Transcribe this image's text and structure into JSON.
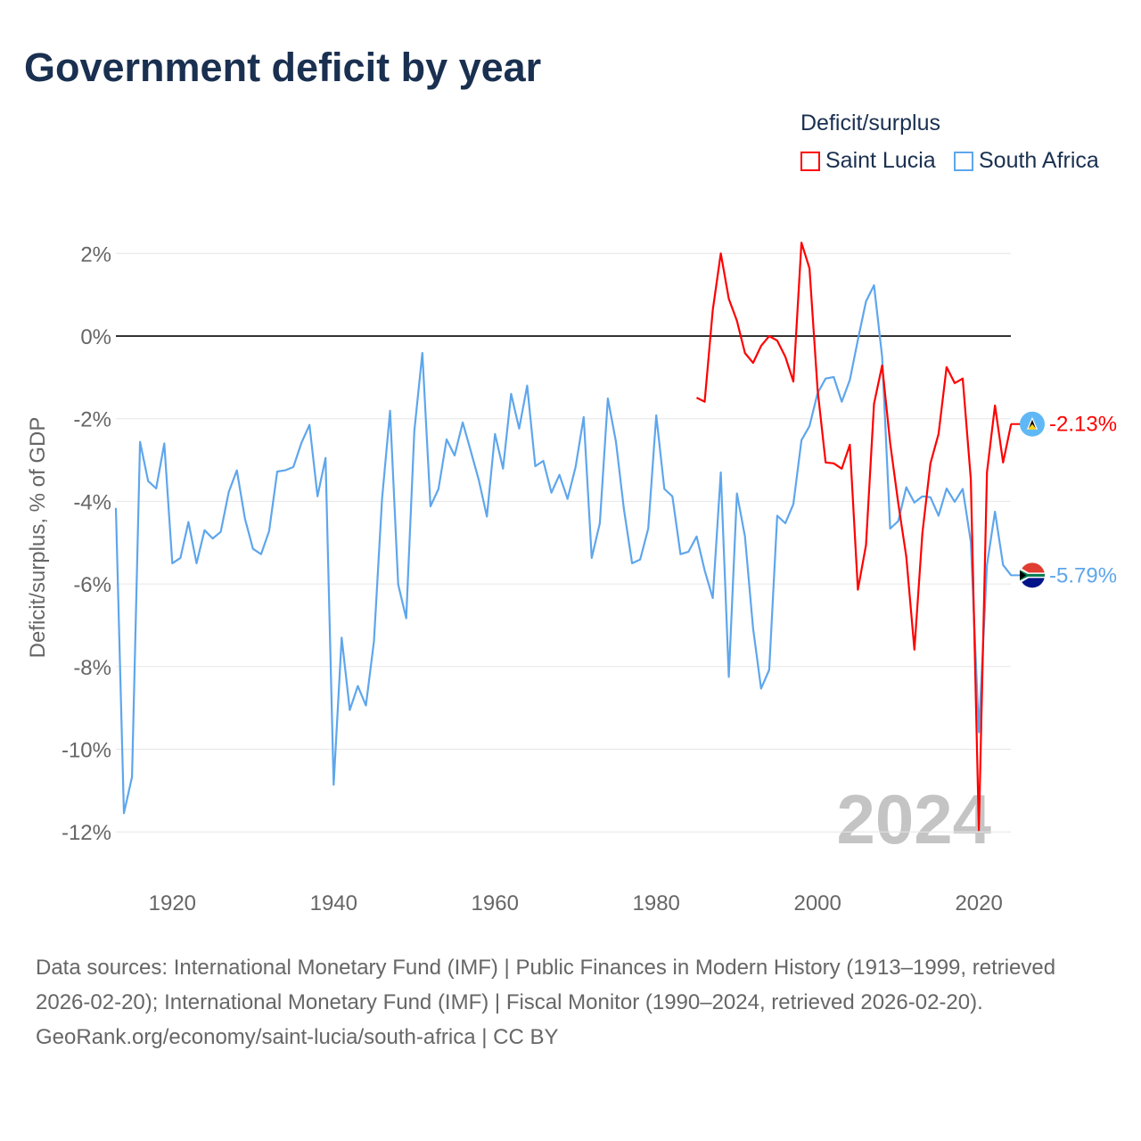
{
  "title": "Government deficit by year",
  "footer": {
    "sources": "Data sources: International Monetary Fund (IMF) | Public Finances in Modern History (1913–1999, retrieved 2026-02-20); International Monetary Fund (IMF) | Fiscal Monitor (1990–2024, retrieved 2026-02-20).",
    "link": "GeoRank.org/economy/saint-lucia/south-africa | CC BY"
  },
  "chart_data": {
    "type": "line",
    "title": "Government deficit by year",
    "xlabel": "",
    "ylabel": "Deficit/surplus, % of GDP",
    "xlim": [
      1913,
      2024
    ],
    "ylim": [
      -12.5,
      2.3
    ],
    "yticks": [
      2,
      0,
      -2,
      -4,
      -6,
      -8,
      -10,
      -12
    ],
    "ytick_labels": [
      "2%",
      "0%",
      "-2%",
      "-4%",
      "-6%",
      "-8%",
      "-10%",
      "-12%"
    ],
    "xticks": [
      1920,
      1940,
      1960,
      1980,
      2000,
      2020
    ],
    "xtick_labels": [
      "1920",
      "1940",
      "1960",
      "1980",
      "2000",
      "2020"
    ],
    "grid": true,
    "legend_title": "Deficit/surplus",
    "legend_position": "top-right",
    "year_watermark": "2024",
    "series": [
      {
        "name": "Saint Lucia",
        "color": "#ff0000",
        "flag": "saint-lucia-flag-icon",
        "end_label": "-2.13%",
        "start_year": 1985,
        "values": [
          -1.49,
          -1.59,
          0.63,
          2.0,
          0.9,
          0.37,
          -0.41,
          -0.65,
          -0.24,
          0.0,
          -0.11,
          -0.5,
          -1.1,
          2.26,
          1.64,
          -1.3,
          -3.06,
          -3.08,
          -3.21,
          -2.63,
          -6.14,
          -5.06,
          -1.64,
          -0.71,
          -2.59,
          -4.05,
          -5.34,
          -7.59,
          -4.76,
          -3.08,
          -2.37,
          -0.75,
          -1.14,
          -1.03,
          -3.47,
          -11.96,
          -3.3,
          -1.68,
          -3.06,
          -2.13
        ]
      },
      {
        "name": "South Africa",
        "color": "#5ea6ec",
        "flag": "south-africa-flag-icon",
        "end_label": "-5.79%",
        "start_year": 1913,
        "values": [
          -4.16,
          -11.55,
          -10.67,
          -2.56,
          -3.51,
          -3.69,
          -2.6,
          -5.5,
          -5.37,
          -4.5,
          -5.5,
          -4.7,
          -4.9,
          -4.74,
          -3.77,
          -3.25,
          -4.42,
          -5.15,
          -5.28,
          -4.72,
          -3.28,
          -3.25,
          -3.17,
          -2.59,
          -2.15,
          -3.88,
          -2.95,
          -10.86,
          -7.3,
          -9.05,
          -8.47,
          -8.94,
          -7.39,
          -3.94,
          -1.81,
          -6.01,
          -6.83,
          -2.3,
          -0.41,
          -4.12,
          -3.7,
          -2.5,
          -2.89,
          -2.09,
          -2.78,
          -3.49,
          -4.37,
          -2.37,
          -3.21,
          -1.4,
          -2.24,
          -1.2,
          -3.15,
          -3.02,
          -3.79,
          -3.36,
          -3.94,
          -3.17,
          -1.96,
          -5.37,
          -4.53,
          -1.51,
          -2.56,
          -4.2,
          -5.5,
          -5.41,
          -4.66,
          -1.92,
          -3.7,
          -3.88,
          -5.28,
          -5.22,
          -4.85,
          -5.67,
          -6.34,
          -3.3,
          -8.25,
          -3.81,
          -4.85,
          -7.07,
          -8.53,
          -8.08,
          -4.35,
          -4.53,
          -4.07,
          -2.52,
          -2.18,
          -1.38,
          -1.03,
          -0.99,
          -1.59,
          -1.06,
          -0.09,
          0.84,
          1.23,
          -0.5,
          -4.66,
          -4.48,
          -3.66,
          -4.03,
          -3.88,
          -3.9,
          -4.35,
          -3.69,
          -4.01,
          -3.7,
          -4.98,
          -9.59,
          -5.54,
          -4.25,
          -5.54,
          -5.79
        ]
      }
    ]
  }
}
